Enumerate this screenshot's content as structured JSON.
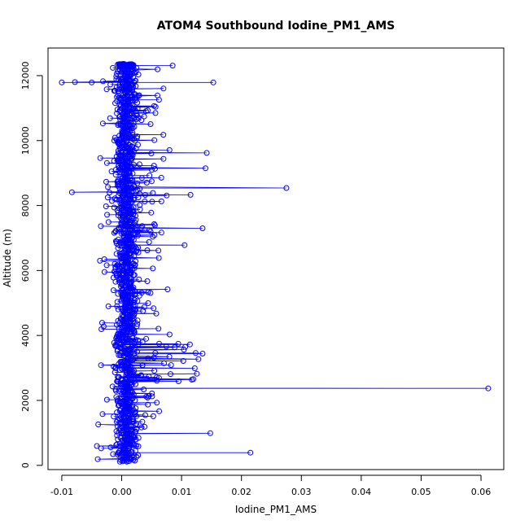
{
  "chart_data": {
    "type": "scatter",
    "title": "ATOM4 Southbound Iodine_PM1_AMS",
    "xlabel": "Iodine_PM1_AMS",
    "ylabel": "Altitude (m)",
    "xlim": [
      -0.0123,
      0.0638
    ],
    "ylim": [
      -130,
      12850
    ],
    "x_ticks": [
      -0.01,
      0.0,
      0.01,
      0.02,
      0.03,
      0.04,
      0.05,
      0.06
    ],
    "x_tick_labels": [
      "-0.01",
      "0.00",
      "0.01",
      "0.02",
      "0.03",
      "0.04",
      "0.05",
      "0.06"
    ],
    "y_ticks": [
      0,
      2000,
      4000,
      6000,
      8000,
      10000,
      12000
    ],
    "y_tick_labels": [
      "0",
      "2000",
      "4000",
      "6000",
      "8000",
      "10000",
      "12000"
    ],
    "series_color": "#0000ff",
    "marker": "open-circle",
    "connected": true,
    "grid": false,
    "outliers": [
      {
        "x": 0.0612,
        "y": 2370
      },
      {
        "x": 0.0275,
        "y": 8540
      },
      {
        "x": 0.0215,
        "y": 390
      },
      {
        "x": 0.0153,
        "y": 11790
      },
      {
        "x": 0.0148,
        "y": 990
      },
      {
        "x": 0.0142,
        "y": 9620
      },
      {
        "x": 0.014,
        "y": 9150
      },
      {
        "x": 0.0135,
        "y": 7300
      },
      {
        "x": 0.0135,
        "y": 3440
      },
      {
        "x": 0.0115,
        "y": 8330
      },
      {
        "x": 0.0105,
        "y": 6780
      },
      {
        "x": 0.0095,
        "y": 2590
      },
      {
        "x": 0.0085,
        "y": 12310
      },
      {
        "x": 0.008,
        "y": 4030
      },
      {
        "x": -0.0083,
        "y": 8410
      },
      {
        "x": -0.01,
        "y": 11790
      },
      {
        "x": -0.0078,
        "y": 11800
      },
      {
        "x": -0.005,
        "y": 11790
      },
      {
        "x": -0.004,
        "y": 190
      },
      {
        "x": -0.0032,
        "y": 1580
      },
      {
        "x": -0.003,
        "y": 4280
      },
      {
        "x": -0.0025,
        "y": 11580
      }
    ]
  }
}
